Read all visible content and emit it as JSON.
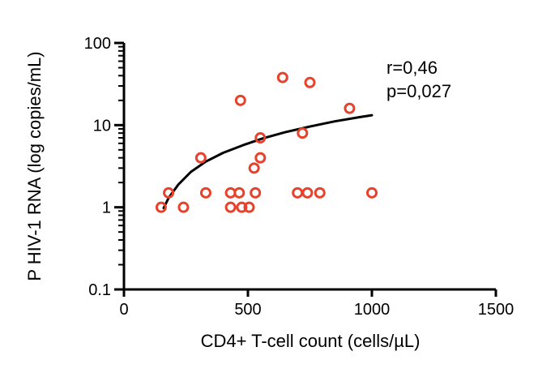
{
  "chart_data": {
    "type": "scatter",
    "title": "",
    "xlabel": "CD4+ T-cell count (cells/µL)",
    "ylabel": "P HIV-1 RNA (log copies/mL)",
    "xlim": [
      0,
      1500
    ],
    "ylim": [
      0.1,
      100
    ],
    "yscale": "log",
    "x_ticks": [
      0,
      500,
      1000,
      1500
    ],
    "x_tick_labels": [
      "0",
      "500",
      "1000",
      "1500"
    ],
    "y_ticks": [
      0.1,
      1,
      10,
      100
    ],
    "y_tick_labels": [
      "0.1",
      "1",
      "10",
      "100"
    ],
    "grid": false,
    "marker_color": "#e8412c",
    "curve_color": "#000000",
    "annotations": [
      "r=0,46",
      "p=0,027"
    ],
    "points": [
      {
        "x": 150,
        "y": 1
      },
      {
        "x": 180,
        "y": 1.5
      },
      {
        "x": 240,
        "y": 1
      },
      {
        "x": 310,
        "y": 4
      },
      {
        "x": 330,
        "y": 1.5
      },
      {
        "x": 430,
        "y": 1
      },
      {
        "x": 430,
        "y": 1.5
      },
      {
        "x": 465,
        "y": 1.5
      },
      {
        "x": 470,
        "y": 20
      },
      {
        "x": 475,
        "y": 1
      },
      {
        "x": 505,
        "y": 1
      },
      {
        "x": 525,
        "y": 3
      },
      {
        "x": 530,
        "y": 1.5
      },
      {
        "x": 550,
        "y": 4
      },
      {
        "x": 550,
        "y": 7
      },
      {
        "x": 640,
        "y": 38
      },
      {
        "x": 700,
        "y": 1.5
      },
      {
        "x": 720,
        "y": 8
      },
      {
        "x": 740,
        "y": 1.5
      },
      {
        "x": 750,
        "y": 33
      },
      {
        "x": 790,
        "y": 1.5
      },
      {
        "x": 910,
        "y": 16
      },
      {
        "x": 1000,
        "y": 1.5
      }
    ],
    "fit_curve": [
      {
        "x": 160,
        "y": 0.98
      },
      {
        "x": 180,
        "y": 1.3
      },
      {
        "x": 220,
        "y": 1.9
      },
      {
        "x": 270,
        "y": 2.7
      },
      {
        "x": 330,
        "y": 3.6
      },
      {
        "x": 400,
        "y": 4.6
      },
      {
        "x": 480,
        "y": 5.7
      },
      {
        "x": 560,
        "y": 6.9
      },
      {
        "x": 650,
        "y": 8.2
      },
      {
        "x": 750,
        "y": 9.6
      },
      {
        "x": 850,
        "y": 11.1
      },
      {
        "x": 950,
        "y": 12.5
      },
      {
        "x": 1000,
        "y": 13.2
      }
    ]
  }
}
